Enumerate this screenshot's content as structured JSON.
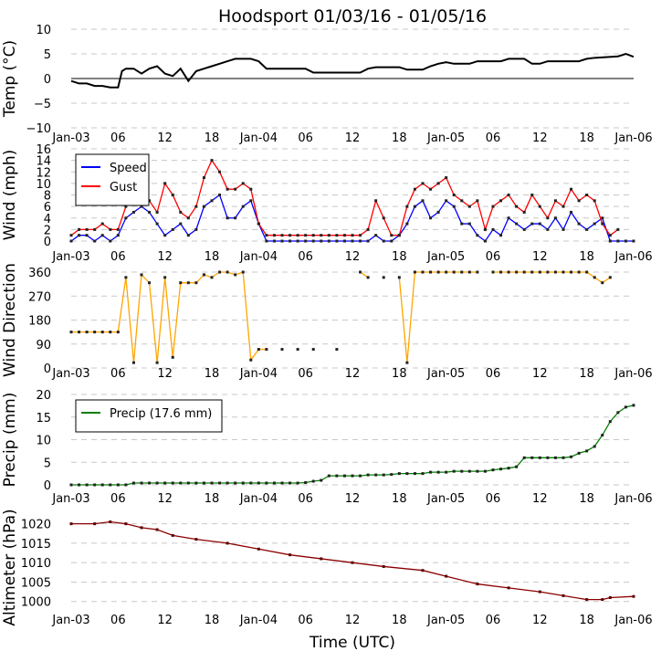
{
  "title": "Hoodsport 01/03/16 - 01/05/16",
  "xlabel": "Time (UTC)",
  "x_tick_labels": [
    "Jan-03",
    "06",
    "12",
    "18",
    "Jan-04",
    "06",
    "12",
    "18",
    "Jan-05",
    "06",
    "12",
    "18",
    "Jan-06"
  ],
  "chart_data": [
    {
      "type": "line",
      "name": "temp",
      "ylabel": "Temp (°C)",
      "ylim": [
        -10,
        10
      ],
      "yticks": [
        -10,
        -5,
        0,
        5,
        10
      ],
      "xlim_hours": [
        0,
        72
      ],
      "zero_line": true,
      "series": [
        {
          "name": "Temp",
          "color": "#000000",
          "x": [
            0,
            1,
            2,
            3,
            4,
            5,
            6,
            6.5,
            7,
            8,
            9,
            10,
            11,
            12,
            13,
            14,
            15,
            16,
            17,
            18,
            19,
            20,
            21,
            22,
            23,
            24,
            25,
            26,
            30,
            31,
            37,
            38,
            39,
            42,
            43,
            45,
            46,
            47,
            48,
            49,
            51,
            52,
            55,
            56,
            58,
            59,
            60,
            61,
            65,
            66,
            67,
            70,
            71,
            72
          ],
          "values": [
            -0.5,
            -1,
            -1,
            -1.5,
            -1.5,
            -1.8,
            -1.8,
            1.5,
            2,
            2,
            1,
            2,
            2.5,
            1,
            0.5,
            2,
            -0.5,
            1.5,
            2,
            2.5,
            3,
            3.5,
            4,
            4,
            4,
            3.5,
            2,
            2,
            2,
            1.2,
            1.2,
            2,
            2.3,
            2.3,
            1.8,
            1.8,
            2.5,
            3,
            3.3,
            3,
            3,
            3.5,
            3.5,
            4,
            4,
            3,
            3,
            3.5,
            3.5,
            4,
            4.2,
            4.5,
            5,
            4.4
          ]
        }
      ]
    },
    {
      "type": "line",
      "name": "wind",
      "ylabel": "Wind (mph)",
      "ylim": [
        0,
        16
      ],
      "yticks": [
        0,
        2,
        4,
        6,
        8,
        10,
        12,
        14,
        16
      ],
      "legend": "top-left",
      "series": [
        {
          "name": "Speed",
          "color": "#0000ff",
          "values": [
            0,
            1,
            1,
            0,
            1,
            0,
            1,
            4,
            5,
            6,
            5,
            3,
            1,
            2,
            3,
            1,
            2,
            6,
            7,
            8,
            4,
            4,
            6,
            7,
            3,
            0,
            0,
            0,
            0,
            0,
            0,
            0,
            0,
            0,
            0,
            0,
            0,
            0,
            0,
            1,
            0,
            0,
            1,
            3,
            6,
            7,
            4,
            5,
            7,
            6,
            3,
            3,
            1,
            0,
            2,
            1,
            4,
            3,
            2,
            3,
            3,
            2,
            4,
            2,
            5,
            3,
            2,
            3,
            4,
            0,
            0,
            0,
            0
          ]
        },
        {
          "name": "Gust",
          "color": "#ff0000",
          "values": [
            1,
            2,
            2,
            2,
            3,
            2,
            2,
            6,
            8,
            9,
            7,
            5,
            10,
            8,
            5,
            4,
            6,
            11,
            14,
            12,
            9,
            9,
            10,
            9,
            3,
            1,
            1,
            1,
            1,
            1,
            1,
            1,
            1,
            1,
            1,
            1,
            1,
            1,
            2,
            7,
            4,
            1,
            1,
            6,
            9,
            10,
            9,
            10,
            11,
            8,
            7,
            6,
            7,
            2,
            6,
            7,
            8,
            6,
            5,
            8,
            6,
            4,
            7,
            6,
            9,
            7,
            8,
            7,
            3,
            1,
            2,
            null,
            null
          ]
        }
      ]
    },
    {
      "type": "line",
      "name": "wind_direction",
      "ylabel": "Wind Direction",
      "ylim": [
        0,
        360
      ],
      "yticks": [
        0,
        90,
        180,
        270,
        360
      ],
      "series": [
        {
          "name": "Direction",
          "color": "#ffa500",
          "values": [
            135,
            135,
            135,
            135,
            135,
            135,
            135,
            340,
            20,
            350,
            320,
            20,
            340,
            40,
            320,
            320,
            320,
            350,
            340,
            360,
            360,
            350,
            360,
            30,
            70,
            70,
            null,
            70,
            null,
            70,
            null,
            70,
            null,
            null,
            70,
            null,
            null,
            360,
            340,
            null,
            340,
            null,
            340,
            20,
            360,
            360,
            360,
            360,
            360,
            360,
            360,
            360,
            360,
            null,
            360,
            360,
            360,
            360,
            360,
            360,
            360,
            360,
            360,
            360,
            360,
            360,
            360,
            340,
            320,
            340,
            null,
            null,
            null
          ]
        }
      ]
    },
    {
      "type": "line",
      "name": "precip",
      "ylabel": "Precip (mm)",
      "ylim": [
        0,
        20
      ],
      "yticks": [
        0,
        5,
        10,
        15,
        20
      ],
      "legend": "top-left",
      "series": [
        {
          "name": "Precip (17.6 mm)",
          "color": "#008000",
          "values": [
            0,
            0,
            0,
            0,
            0,
            0,
            0,
            0,
            0.4,
            0.4,
            0.4,
            0.4,
            0.4,
            0.4,
            0.4,
            0.4,
            0.4,
            0.4,
            0.4,
            0.4,
            0.4,
            0.4,
            0.4,
            0.4,
            0.4,
            0.4,
            0.4,
            0.4,
            0.4,
            0.4,
            0.5,
            0.8,
            1.0,
            2,
            2,
            2,
            2,
            2,
            2.2,
            2.2,
            2.2,
            2.3,
            2.5,
            2.5,
            2.5,
            2.5,
            2.8,
            2.8,
            2.8,
            3,
            3,
            3,
            3,
            3,
            3.3,
            3.5,
            3.7,
            4,
            6,
            6,
            6,
            6,
            6,
            6,
            6.2,
            7,
            7.5,
            8.5,
            11,
            14,
            16,
            17.2,
            17.6
          ]
        }
      ]
    },
    {
      "type": "line",
      "name": "altimeter",
      "ylabel": "Altimeter (hPa)",
      "ylim": [
        995,
        1022.5
      ],
      "yticks": [
        1000,
        1005,
        1010,
        1015,
        1020
      ],
      "series": [
        {
          "name": "Altimeter",
          "color": "#8b0000",
          "x": [
            0,
            3,
            5,
            7,
            9,
            11,
            13,
            16,
            20,
            24,
            28,
            32,
            36,
            40,
            45,
            48,
            52,
            56,
            60,
            63,
            66,
            68,
            69,
            72
          ],
          "values": [
            1020,
            1020,
            1020.5,
            1020,
            1019,
            1018.5,
            1017,
            1016,
            1015,
            1013.5,
            1012,
            1011,
            1010,
            1009,
            1008,
            1006.5,
            1004.5,
            1003.5,
            1002.5,
            1001.5,
            1000.5,
            1000.5,
            1001,
            1001.3
          ]
        }
      ]
    }
  ]
}
